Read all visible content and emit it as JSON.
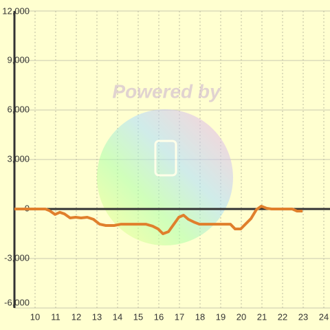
{
  "chart_data": {
    "type": "line",
    "watermark": "Powered by",
    "x": [
      9.0,
      10.5,
      10.7,
      10.97,
      11.2,
      11.43,
      11.7,
      11.97,
      12.23,
      12.53,
      12.83,
      13.13,
      13.43,
      13.83,
      14.17,
      14.7,
      15.37,
      15.7,
      15.97,
      16.2,
      16.47,
      16.73,
      16.97,
      17.2,
      17.43,
      17.7,
      17.97,
      19.47,
      19.7,
      19.97,
      20.2,
      20.47,
      20.73,
      20.97,
      21.23,
      21.47,
      22.47,
      22.7,
      22.97
    ],
    "series": [
      {
        "color": "#e07f2c",
        "values": [
          0,
          0,
          -100,
          -330,
          -200,
          -300,
          -540,
          -500,
          -540,
          -500,
          -625,
          -920,
          -1000,
          -1000,
          -920,
          -920,
          -920,
          -1040,
          -1210,
          -1500,
          -1375,
          -920,
          -500,
          -375,
          -625,
          -790,
          -920,
          -920,
          -1210,
          -1210,
          -920,
          -580,
          -40,
          170,
          40,
          0,
          0,
          -125,
          -125
        ]
      }
    ],
    "xlim": [
      9,
      24.3
    ],
    "xticks": [
      10,
      11,
      12,
      13,
      14,
      15,
      16,
      17,
      18,
      19,
      20,
      21,
      22,
      23,
      24
    ],
    "ylim": [
      -6000,
      12000
    ],
    "yticks": [
      {
        "value": 12000,
        "label": "12,000"
      },
      {
        "value": 9000,
        "label": "9,000"
      },
      {
        "value": 6000,
        "label": "6,000"
      },
      {
        "value": 3000,
        "label": "3,000"
      },
      0,
      {
        "value": -3000,
        "label": "-3,000"
      },
      {
        "value": -6000,
        "label": "-6,000"
      }
    ],
    "grid": true
  }
}
